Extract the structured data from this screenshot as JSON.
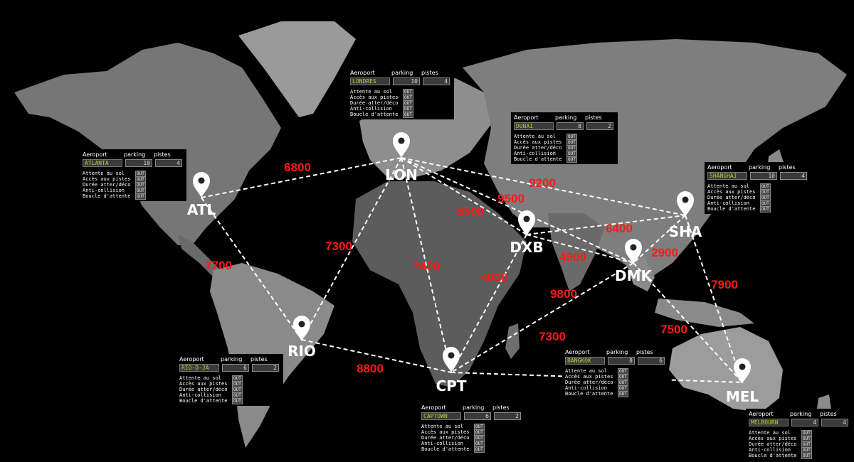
{
  "colors": {
    "route": "#ffffff",
    "distance": "#ff1a1a",
    "land": "#7a7a7a",
    "ocean": "#000000",
    "lcd": "#b5cf2e"
  },
  "panel_headers": {
    "airport": "Aeroport",
    "parking": "parking",
    "runways": "pistes"
  },
  "status_labels": [
    "Attente au sol",
    "Accès aux pistes",
    "Durée atter/déco",
    "Anti-collision",
    "Boucle d'attente"
  ],
  "status_value": "OUT",
  "airports": [
    {
      "code": "ATL",
      "name": "ATLANTA",
      "parking": "10",
      "runways": "4"
    },
    {
      "code": "LON",
      "name": "LONDRES",
      "parking": "10",
      "runways": "4"
    },
    {
      "code": "DXB",
      "name": "DUBAI",
      "parking": "8",
      "runways": "2"
    },
    {
      "code": "SHA",
      "name": "SHANGHAI",
      "parking": "10",
      "runways": "4"
    },
    {
      "code": "DMK",
      "name": "BANGKOK",
      "parking": "8",
      "runways": "6"
    },
    {
      "code": "RIO",
      "name": "RIO-D-JA",
      "parking": "6",
      "runways": "2"
    },
    {
      "code": "CPT",
      "name": "CAPTOWN",
      "parking": "6",
      "runways": "2"
    },
    {
      "code": "MEL",
      "name": "MELBOURN",
      "parking": "4",
      "runways": "4"
    }
  ],
  "routes": [
    {
      "from": "ATL",
      "to": "LON",
      "distance": "6800"
    },
    {
      "from": "ATL",
      "to": "RIO",
      "distance": "7700"
    },
    {
      "from": "LON",
      "to": "RIO",
      "distance": "7300"
    },
    {
      "from": "LON",
      "to": "CPT",
      "distance": "7400"
    },
    {
      "from": "LON",
      "to": "DXB",
      "distance": "5500"
    },
    {
      "from": "LON",
      "to": "DMK",
      "distance": "9500"
    },
    {
      "from": "LON",
      "to": "SHA",
      "distance": "9200"
    },
    {
      "from": "DXB",
      "to": "SHA",
      "distance": "6400"
    },
    {
      "from": "DXB",
      "to": "DMK",
      "distance": "4900"
    },
    {
      "from": "DXB",
      "to": "CPT",
      "distance": "4000"
    },
    {
      "from": "SHA",
      "to": "DMK",
      "distance": "2900"
    },
    {
      "from": "SHA",
      "to": "MEL",
      "distance": "7900"
    },
    {
      "from": "DMK",
      "to": "CPT",
      "distance": "9800"
    },
    {
      "from": "DMK",
      "to": "MEL",
      "distance": "7500"
    },
    {
      "from": "RIO",
      "to": "CPT",
      "distance": "8800"
    },
    {
      "from": "CPT",
      "to": "MEL",
      "distance": "7300"
    }
  ]
}
